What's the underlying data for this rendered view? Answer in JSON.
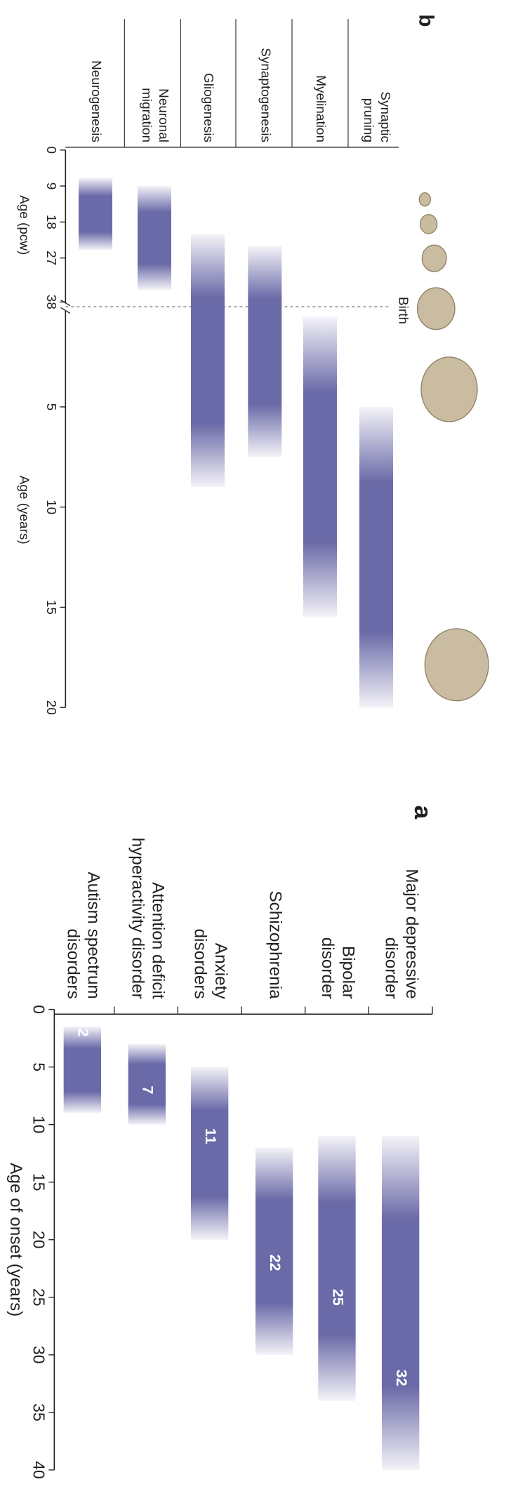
{
  "chart_data": [
    {
      "type": "range-bar",
      "label": "b",
      "color": "#6b6aa8",
      "annotation": "Birth",
      "pcw_axis": {
        "title": "Age (pcw)",
        "xlim": [
          0,
          38
        ],
        "xticks": [
          0,
          9,
          18,
          27,
          38
        ]
      },
      "years_axis": {
        "title": "Age (years)",
        "xlim": [
          0,
          20
        ],
        "xticks": [
          5,
          10,
          15,
          20
        ]
      },
      "rows": [
        {
          "name": [
            "Synaptic",
            "pruning"
          ],
          "start": {
            "axis": "years",
            "value": 5
          },
          "end": {
            "axis": "years",
            "value": 20
          }
        },
        {
          "name": [
            "Myelination"
          ],
          "start": {
            "axis": "years",
            "value": 0.5
          },
          "end": {
            "axis": "years",
            "value": 15.5
          }
        },
        {
          "name": [
            "Synaptogenesis"
          ],
          "start": {
            "axis": "pcw",
            "value": 24
          },
          "end": {
            "axis": "years",
            "value": 7.5
          }
        },
        {
          "name": [
            "Gliogenesis"
          ],
          "start": {
            "axis": "pcw",
            "value": 21
          },
          "end": {
            "axis": "years",
            "value": 9
          }
        },
        {
          "name": [
            "Neuronal",
            "migration"
          ],
          "start": {
            "axis": "pcw",
            "value": 9
          },
          "end": {
            "axis": "pcw",
            "value": 35
          }
        },
        {
          "name": [
            "Neurogenesis"
          ],
          "start": {
            "axis": "pcw",
            "value": 7
          },
          "end": {
            "axis": "pcw",
            "value": 25
          }
        }
      ]
    },
    {
      "type": "range-bar",
      "label": "a",
      "color": "#6b6aa8",
      "xlabel": "Age of onset (years)",
      "xlim": [
        0,
        40
      ],
      "xticks": [
        0,
        5,
        10,
        15,
        20,
        25,
        30,
        35,
        40
      ],
      "rows": [
        {
          "name": [
            "Major depressive",
            "disorder"
          ],
          "start": 11,
          "end": 40,
          "median": 32
        },
        {
          "name": [
            "Bipolar",
            "disorder"
          ],
          "start": 11,
          "end": 34,
          "median": 25
        },
        {
          "name": [
            "Schizophrenia"
          ],
          "start": 12,
          "end": 30,
          "median": 22
        },
        {
          "name": [
            "Anxiety",
            "disorders"
          ],
          "start": 5,
          "end": 20,
          "median": 11
        },
        {
          "name": [
            "Attention deficit",
            "hyperactivity disorder"
          ],
          "start": 3,
          "end": 10,
          "median": 7
        },
        {
          "name": [
            "Autism spectrum",
            "disorders"
          ],
          "start": 1.5,
          "end": 9,
          "median": 2
        }
      ]
    }
  ]
}
